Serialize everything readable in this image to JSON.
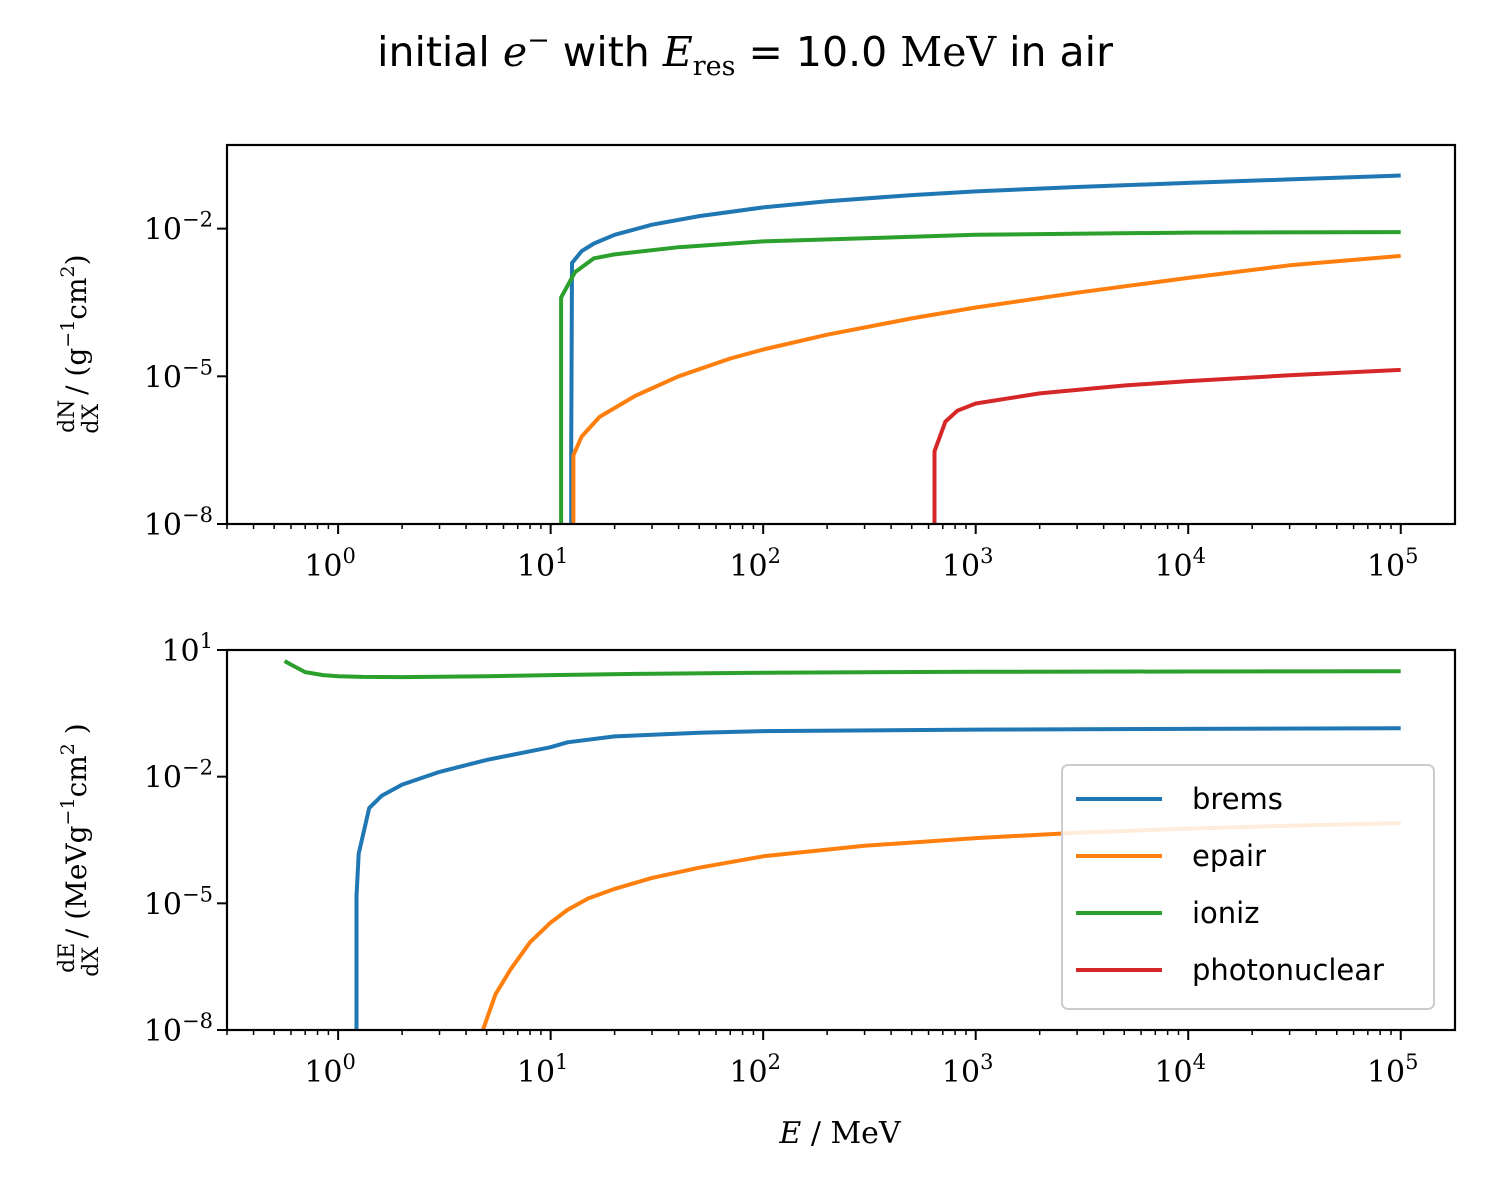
{
  "figure": {
    "title_prefix": "initial ",
    "title_particle": "e",
    "title_particle_sup": "−",
    "title_mid": " with ",
    "title_var": "E",
    "title_var_sub": "res",
    "title_eq": " = 10.0 ",
    "title_unit": "MeV",
    "title_suffix": " in air"
  },
  "chart_data": [
    {
      "type": "line",
      "panel": "top",
      "xscale": "log",
      "yscale": "log",
      "xlim": [
        0.3,
        180000
      ],
      "ylim": [
        1e-08,
        0.5
      ],
      "xlabel": "",
      "ylabel": "dN/dX / (g⁻¹cm²)",
      "ylabel_parts": {
        "frac_num": "dN",
        "frac_den": "dX",
        "unit_open": " / (g",
        "unit_exp1": "−1",
        "unit_mid": "cm",
        "unit_exp2": "2",
        "unit_close": ")"
      },
      "xticks": [
        1,
        10,
        100,
        1000,
        10000,
        100000
      ],
      "xtick_labels": [
        {
          "base": "10",
          "exp": "0"
        },
        {
          "base": "10",
          "exp": "1"
        },
        {
          "base": "10",
          "exp": "2"
        },
        {
          "base": "10",
          "exp": "3"
        },
        {
          "base": "10",
          "exp": "4"
        },
        {
          "base": "10",
          "exp": "5"
        }
      ],
      "yticks": [
        1e-08,
        1e-05,
        0.01
      ],
      "ytick_labels": [
        {
          "base": "10",
          "exp": "−8"
        },
        {
          "base": "10",
          "exp": "−5"
        },
        {
          "base": "10",
          "exp": "−2"
        }
      ],
      "grid": false,
      "series": [
        {
          "name": "brems",
          "color": "#1f77b4",
          "x": [
            12.5,
            12.5,
            12.6,
            14,
            16,
            20,
            30,
            50,
            100,
            200,
            500,
            1000,
            3000,
            10000,
            30000,
            100000
          ],
          "y": [
            1e-08,
            3e-07,
            0.002,
            0.0035,
            0.005,
            0.0075,
            0.012,
            0.018,
            0.027,
            0.036,
            0.048,
            0.057,
            0.07,
            0.085,
            0.1,
            0.12
          ]
        },
        {
          "name": "epair",
          "color": "#ff7f0e",
          "x": [
            12.8,
            12.8,
            14,
            17,
            25,
            40,
            70,
            100,
            200,
            500,
            1000,
            3000,
            10000,
            30000,
            100000
          ],
          "y": [
            1e-08,
            2.5e-07,
            6e-07,
            1.5e-06,
            4e-06,
            1e-05,
            2.3e-05,
            3.5e-05,
            7e-05,
            0.00015,
            0.00025,
            0.0005,
            0.001,
            0.0018,
            0.0028
          ]
        },
        {
          "name": "ioniz",
          "color": "#2ca02c",
          "x": [
            11.2,
            11.2,
            13,
            16,
            20,
            40,
            100,
            1000,
            10000,
            100000
          ],
          "y": [
            1e-08,
            0.0004,
            0.0013,
            0.0025,
            0.003,
            0.0042,
            0.0055,
            0.0075,
            0.0083,
            0.0085
          ]
        },
        {
          "name": "photonuclear",
          "color": "#d62728",
          "x": [
            640,
            640,
            720,
            820,
            1000,
            2000,
            5000,
            10000,
            30000,
            100000
          ],
          "y": [
            1e-08,
            3e-07,
            1.2e-06,
            2e-06,
            2.8e-06,
            4.5e-06,
            6.5e-06,
            8e-06,
            1.05e-05,
            1.35e-05
          ]
        }
      ]
    },
    {
      "type": "line",
      "panel": "bottom",
      "xscale": "log",
      "yscale": "log",
      "xlim": [
        0.3,
        180000
      ],
      "ylim": [
        1e-08,
        10
      ],
      "xlabel": "E / MeV",
      "xlabel_parts": {
        "var": "E",
        "sep": " / ",
        "unit": "MeV"
      },
      "ylabel": "dE/dX / (MeV g⁻¹cm² )",
      "ylabel_parts": {
        "frac_num": "dE",
        "frac_den": "dX",
        "unit_open": " / (MeVg",
        "unit_exp1": "−1",
        "unit_mid": "cm",
        "unit_exp2": "2",
        "unit_close": " )"
      },
      "xticks": [
        1,
        10,
        100,
        1000,
        10000,
        100000
      ],
      "xtick_labels": [
        {
          "base": "10",
          "exp": "0"
        },
        {
          "base": "10",
          "exp": "1"
        },
        {
          "base": "10",
          "exp": "2"
        },
        {
          "base": "10",
          "exp": "3"
        },
        {
          "base": "10",
          "exp": "4"
        },
        {
          "base": "10",
          "exp": "5"
        }
      ],
      "yticks": [
        1e-08,
        1e-05,
        0.01,
        10
      ],
      "ytick_labels": [
        {
          "base": "10",
          "exp": "−8"
        },
        {
          "base": "10",
          "exp": "−5"
        },
        {
          "base": "10",
          "exp": "−2"
        },
        {
          "base": "10",
          "exp": "1"
        }
      ],
      "grid": false,
      "legend": {
        "position": "lower right",
        "entries": [
          {
            "label": "brems",
            "color": "#1f77b4"
          },
          {
            "label": "epair",
            "color": "#ff7f0e"
          },
          {
            "label": "ioniz",
            "color": "#2ca02c"
          },
          {
            "label": "photonuclear",
            "color": "#d62728"
          }
        ]
      },
      "series": [
        {
          "name": "brems",
          "color": "#1f77b4",
          "x": [
            1.22,
            1.22,
            1.25,
            1.4,
            1.6,
            2,
            3,
            5,
            10,
            12,
            20,
            50,
            100,
            1000,
            10000,
            100000
          ],
          "y": [
            1e-08,
            1.5e-05,
            0.00015,
            0.0018,
            0.0035,
            0.0065,
            0.013,
            0.025,
            0.05,
            0.065,
            0.09,
            0.11,
            0.12,
            0.13,
            0.135,
            0.14
          ]
        },
        {
          "name": "epair",
          "color": "#ff7f0e",
          "x": [
            4.8,
            5.5,
            6.5,
            8,
            10,
            12,
            15,
            20,
            30,
            50,
            100,
            300,
            1000,
            3000,
            10000,
            30000,
            100000
          ],
          "y": [
            1e-08,
            7e-08,
            2.8e-07,
            1.2e-06,
            3.5e-06,
            7e-06,
            1.3e-05,
            2.2e-05,
            4e-05,
            7e-05,
            0.00013,
            0.00023,
            0.00035,
            0.00047,
            0.00059,
            0.00069,
            0.0008
          ]
        },
        {
          "name": "ioniz",
          "color": "#2ca02c",
          "x": [
            0.56,
            0.6,
            0.7,
            0.85,
            1,
            1.3,
            2,
            3,
            5,
            10,
            30,
            100,
            1000,
            10000,
            100000
          ],
          "y": [
            5.5,
            4.5,
            3.0,
            2.55,
            2.4,
            2.3,
            2.28,
            2.32,
            2.4,
            2.55,
            2.75,
            2.9,
            3.05,
            3.1,
            3.15
          ]
        }
      ]
    }
  ]
}
